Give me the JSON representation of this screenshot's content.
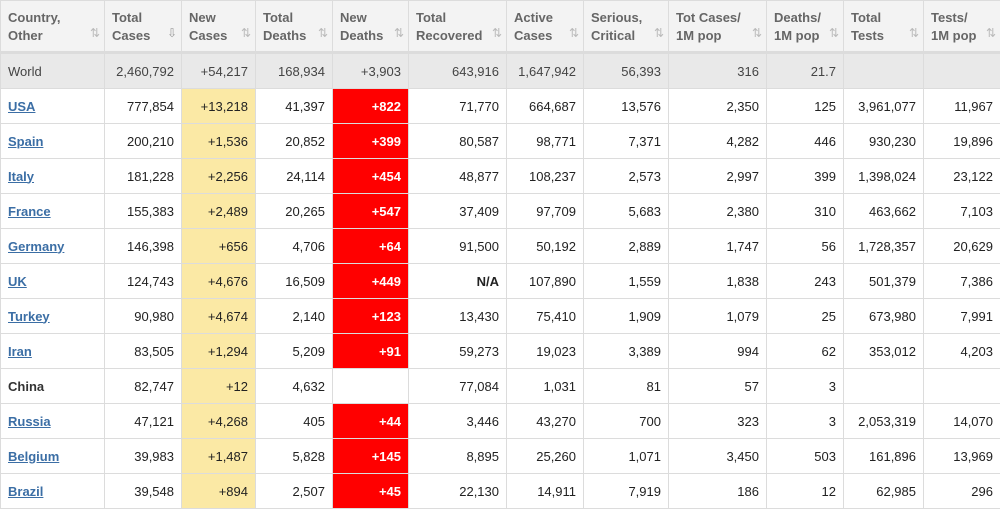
{
  "headers": [
    {
      "line1": "Country,",
      "line2": "Other",
      "sort": "⇅",
      "active": false
    },
    {
      "line1": "Total",
      "line2": "Cases",
      "sort": "⇩",
      "active": true
    },
    {
      "line1": "New",
      "line2": "Cases",
      "sort": "⇅",
      "active": false
    },
    {
      "line1": "Total",
      "line2": "Deaths",
      "sort": "⇅",
      "active": false
    },
    {
      "line1": "New",
      "line2": "Deaths",
      "sort": "⇅",
      "active": false
    },
    {
      "line1": "Total",
      "line2": "Recovered",
      "sort": "⇅",
      "active": false
    },
    {
      "line1": "Active",
      "line2": "Cases",
      "sort": "⇅",
      "active": false
    },
    {
      "line1": "Serious,",
      "line2": "Critical",
      "sort": "⇅",
      "active": false
    },
    {
      "line1": "Tot Cases/",
      "line2": "1M pop",
      "sort": "⇅",
      "active": false
    },
    {
      "line1": "Deaths/",
      "line2": "1M pop",
      "sort": "⇅",
      "active": false
    },
    {
      "line1": "Total",
      "line2": "Tests",
      "sort": "⇅",
      "active": false
    },
    {
      "line1": "Tests/",
      "line2": "1M pop",
      "sort": "⇅",
      "active": false
    }
  ],
  "world": [
    "World",
    "2,460,792",
    "+54,217",
    "168,934",
    "+3,903",
    "643,916",
    "1,647,942",
    "56,393",
    "316",
    "21.7",
    "",
    ""
  ],
  "rows": [
    [
      "USA",
      "777,854",
      "+13,218",
      "41,397",
      "+822",
      "71,770",
      "664,687",
      "13,576",
      "2,350",
      "125",
      "3,961,077",
      "11,967"
    ],
    [
      "Spain",
      "200,210",
      "+1,536",
      "20,852",
      "+399",
      "80,587",
      "98,771",
      "7,371",
      "4,282",
      "446",
      "930,230",
      "19,896"
    ],
    [
      "Italy",
      "181,228",
      "+2,256",
      "24,114",
      "+454",
      "48,877",
      "108,237",
      "2,573",
      "2,997",
      "399",
      "1,398,024",
      "23,122"
    ],
    [
      "France",
      "155,383",
      "+2,489",
      "20,265",
      "+547",
      "37,409",
      "97,709",
      "5,683",
      "2,380",
      "310",
      "463,662",
      "7,103"
    ],
    [
      "Germany",
      "146,398",
      "+656",
      "4,706",
      "+64",
      "91,500",
      "50,192",
      "2,889",
      "1,747",
      "56",
      "1,728,357",
      "20,629"
    ],
    [
      "UK",
      "124,743",
      "+4,676",
      "16,509",
      "+449",
      "N/A",
      "107,890",
      "1,559",
      "1,838",
      "243",
      "501,379",
      "7,386"
    ],
    [
      "Turkey",
      "90,980",
      "+4,674",
      "2,140",
      "+123",
      "13,430",
      "75,410",
      "1,909",
      "1,079",
      "25",
      "673,980",
      "7,991"
    ],
    [
      "Iran",
      "83,505",
      "+1,294",
      "5,209",
      "+91",
      "59,273",
      "19,023",
      "3,389",
      "994",
      "62",
      "353,012",
      "4,203"
    ],
    [
      "China",
      "82,747",
      "+12",
      "4,632",
      "",
      "77,084",
      "1,031",
      "81",
      "57",
      "3",
      "",
      ""
    ],
    [
      "Russia",
      "47,121",
      "+4,268",
      "405",
      "+44",
      "3,446",
      "43,270",
      "700",
      "323",
      "3",
      "2,053,319",
      "14,070"
    ],
    [
      "Belgium",
      "39,983",
      "+1,487",
      "5,828",
      "+145",
      "8,895",
      "25,260",
      "1,071",
      "3,450",
      "503",
      "161,896",
      "13,969"
    ],
    [
      "Brazil",
      "39,548",
      "+894",
      "2,507",
      "+45",
      "22,130",
      "14,911",
      "7,919",
      "186",
      "12",
      "62,985",
      "296"
    ]
  ],
  "link_rows": [
    true,
    true,
    true,
    true,
    true,
    true,
    true,
    true,
    false,
    true,
    true,
    true
  ],
  "colors": {
    "new_cases_bg": "#fbe9a5",
    "new_deaths_bg": "#ff0000",
    "link": "#3b6ea5",
    "world_bg": "#e9e9e9",
    "header_bg": "#f3f3f3"
  },
  "icons": {
    "sort": "sort-arrows-icon",
    "sort_active": "sort-descending-icon"
  }
}
